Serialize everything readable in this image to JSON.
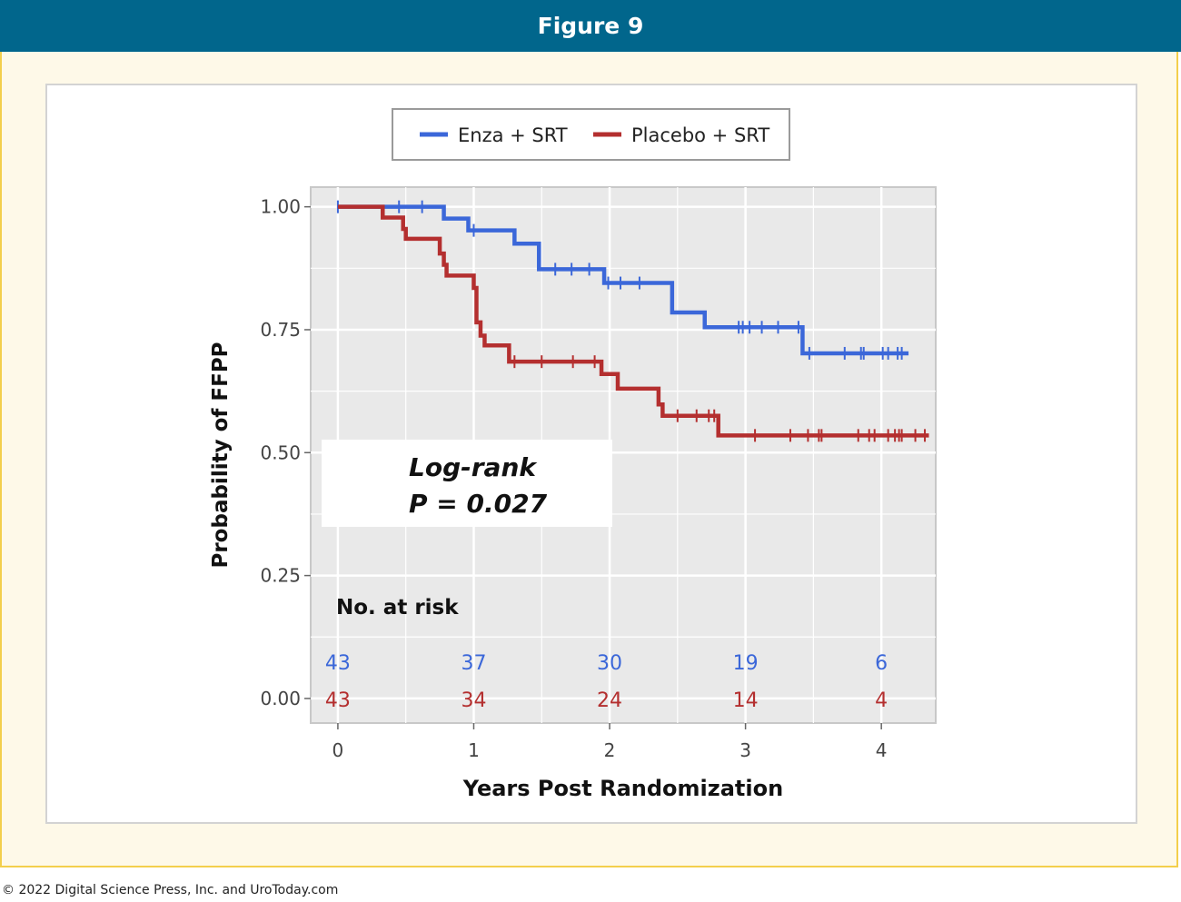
{
  "header": {
    "title": "Figure 9"
  },
  "footer": {
    "copyright": "© 2022 Digital Science Press, Inc. and UroToday.com"
  },
  "colors": {
    "header_bg": "#01668c",
    "enza": "#3b67d9",
    "placebo": "#b42f2f",
    "panel_bg": "#e9e9e9"
  },
  "chart_data": {
    "type": "line",
    "subtype": "kaplan-meier-step",
    "xlabel": "Years Post Randomization",
    "ylabel": "Probability of FFPP",
    "xlim": [
      -0.2,
      4.4
    ],
    "ylim": [
      -0.05,
      1.04
    ],
    "xticks": [
      "0",
      "1",
      "2",
      "3",
      "4"
    ],
    "yticks": [
      "0.00",
      "0.25",
      "0.50",
      "0.75",
      "1.00"
    ],
    "legend": {
      "position": "top",
      "entries": [
        "Enza + SRT",
        "Placebo + SRT"
      ]
    },
    "annotation": {
      "line1": "Log-rank",
      "line2": "P = 0.027"
    },
    "series": [
      {
        "name": "Enza + SRT",
        "color": "#3b67d9",
        "steps": [
          [
            0,
            1.0
          ],
          [
            0.78,
            0.976
          ],
          [
            0.96,
            0.952
          ],
          [
            1.3,
            0.925
          ],
          [
            1.48,
            0.873
          ],
          [
            1.96,
            0.845
          ],
          [
            2.46,
            0.785
          ],
          [
            2.7,
            0.755
          ],
          [
            3.42,
            0.702
          ]
        ],
        "end": 4.2,
        "censor": [
          0.0,
          0.45,
          0.62,
          1.0,
          1.6,
          1.72,
          1.85,
          1.99,
          2.08,
          2.22,
          2.95,
          2.98,
          3.03,
          3.12,
          3.24,
          3.39,
          3.47,
          3.73,
          3.85,
          3.87,
          4.01,
          4.05,
          4.12,
          4.15
        ]
      },
      {
        "name": "Placebo + SRT",
        "color": "#b42f2f",
        "steps": [
          [
            0,
            1.0
          ],
          [
            0.33,
            0.978
          ],
          [
            0.48,
            0.955
          ],
          [
            0.5,
            0.935
          ],
          [
            0.75,
            0.905
          ],
          [
            0.78,
            0.882
          ],
          [
            0.8,
            0.86
          ],
          [
            1.0,
            0.835
          ],
          [
            1.02,
            0.765
          ],
          [
            1.05,
            0.738
          ],
          [
            1.08,
            0.718
          ],
          [
            1.26,
            0.685
          ],
          [
            1.94,
            0.66
          ],
          [
            2.06,
            0.63
          ],
          [
            2.36,
            0.598
          ],
          [
            2.39,
            0.575
          ],
          [
            2.8,
            0.535
          ]
        ],
        "end": 4.35,
        "censor": [
          1.3,
          1.5,
          1.73,
          1.89,
          2.5,
          2.64,
          2.73,
          2.77,
          3.07,
          3.33,
          3.46,
          3.54,
          3.56,
          3.83,
          3.91,
          3.95,
          4.05,
          4.1,
          4.13,
          4.15,
          4.25,
          4.32
        ]
      }
    ],
    "risk_table": {
      "title": "No. at risk",
      "times": [
        0,
        1,
        2,
        3,
        4
      ],
      "rows": [
        {
          "name": "Enza + SRT",
          "values": [
            "43",
            "37",
            "30",
            "19",
            "6"
          ]
        },
        {
          "name": "Placebo + SRT",
          "values": [
            "43",
            "34",
            "24",
            "14",
            "4"
          ]
        }
      ]
    }
  }
}
